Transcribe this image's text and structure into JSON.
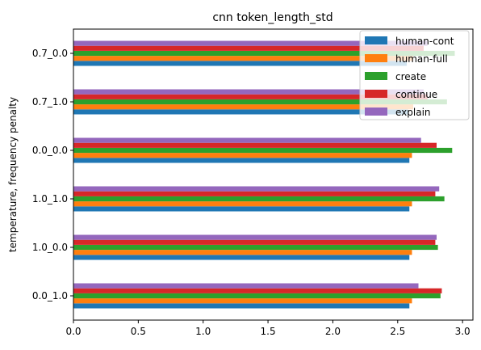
{
  "chart_data": {
    "type": "bar",
    "orientation": "horizontal",
    "title": "cnn token_length_std",
    "xlabel": "",
    "ylabel": "temperature, frequency penalty",
    "xlim": [
      0,
      3.08
    ],
    "xticks": [
      "0.0",
      "0.5",
      "1.0",
      "1.5",
      "2.0",
      "2.5",
      "3.0"
    ],
    "categories": [
      "0.0_1.0",
      "1.0_0.0",
      "1.0_1.0",
      "0.0_0.0",
      "0.7_1.0",
      "0.7_0.0"
    ],
    "series": [
      {
        "name": "human-cont",
        "color": "#1f77b4",
        "values": [
          2.59,
          2.59,
          2.59,
          2.59,
          2.58,
          2.57
        ]
      },
      {
        "name": "human-full",
        "color": "#ff7f0e",
        "values": [
          2.61,
          2.61,
          2.61,
          2.61,
          2.62,
          2.62
        ]
      },
      {
        "name": "create",
        "color": "#2ca02c",
        "values": [
          2.83,
          2.81,
          2.86,
          2.92,
          2.88,
          2.94
        ]
      },
      {
        "name": "continue",
        "color": "#d62728",
        "values": [
          2.84,
          2.79,
          2.79,
          2.8,
          2.73,
          2.7
        ]
      },
      {
        "name": "explain",
        "color": "#9467bd",
        "values": [
          2.66,
          2.8,
          2.82,
          2.68,
          2.7,
          2.73
        ]
      }
    ],
    "legend": "top-right",
    "grid": false
  }
}
